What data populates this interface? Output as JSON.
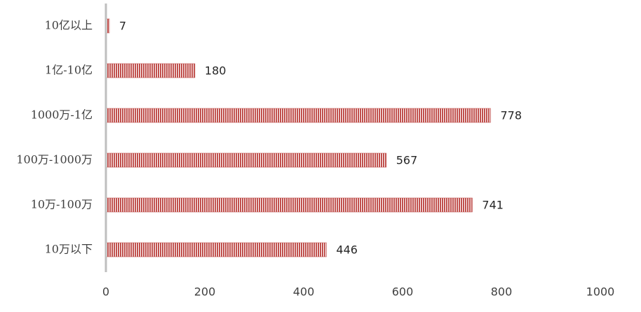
{
  "chart_data": {
    "type": "bar",
    "orientation": "horizontal",
    "categories": [
      "10亿以上",
      "1亿-10亿",
      "1000万-1亿",
      "100万-1000万",
      "10万-100万",
      "10万以下"
    ],
    "values": [
      7,
      180,
      778,
      567,
      741,
      446
    ],
    "color": "#c0504d",
    "xlim": [
      0,
      1000
    ],
    "xticks": [
      0,
      200,
      400,
      600,
      800,
      1000
    ],
    "grid": false
  }
}
